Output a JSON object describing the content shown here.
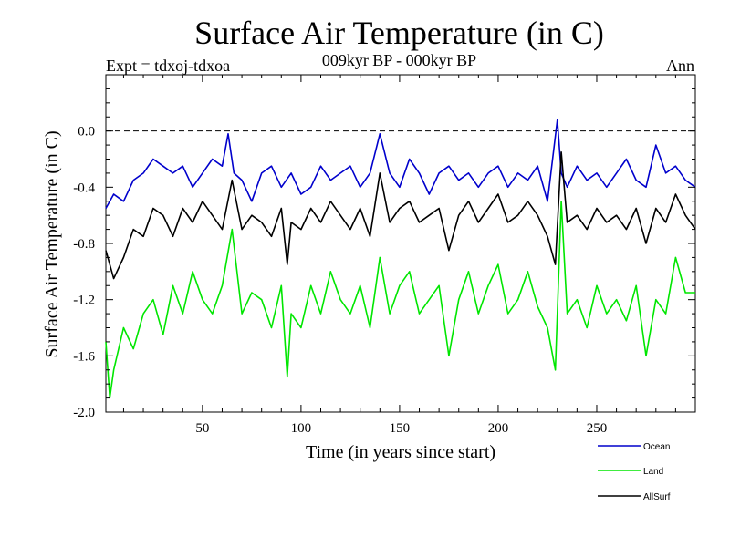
{
  "header": {
    "title": "Surface Air Temperature (in C)",
    "subtitle": "009kyr BP - 000kyr BP",
    "expt": "Expt = tdxoj-tdxoa",
    "season": "Ann"
  },
  "chart_data": {
    "type": "line",
    "title": "Surface Air Temperature (in C)",
    "subtitle": "009kyr BP - 000kyr BP",
    "xlabel": "Time (in years since start)",
    "ylabel": "Surface Air Temperature (in C)",
    "xlim": [
      1,
      300
    ],
    "ylim": [
      -2.0,
      0.4
    ],
    "xticks": [
      50,
      100,
      150,
      200,
      250
    ],
    "yticks": [
      -2.0,
      -1.6,
      -1.2,
      -0.8,
      -0.4,
      0.0
    ],
    "ytick_labels": [
      "-2.0",
      "-1.6",
      "-1.2",
      "-0.8",
      "-0.4",
      "0.0"
    ],
    "zero_line": "dashed",
    "grid": false,
    "legend_position": "bottom-right, below plot",
    "series": [
      {
        "name": "Ocean",
        "color": "#0000cc",
        "x": [
          1,
          5,
          10,
          15,
          20,
          25,
          30,
          35,
          40,
          45,
          50,
          55,
          60,
          63,
          66,
          70,
          75,
          80,
          85,
          90,
          95,
          100,
          105,
          110,
          115,
          120,
          125,
          130,
          135,
          140,
          145,
          150,
          155,
          160,
          165,
          170,
          175,
          180,
          185,
          190,
          195,
          200,
          205,
          210,
          215,
          220,
          225,
          230,
          232,
          235,
          240,
          245,
          250,
          255,
          260,
          265,
          270,
          275,
          280,
          285,
          290,
          295,
          300
        ],
        "values": [
          -0.55,
          -0.45,
          -0.5,
          -0.35,
          -0.3,
          -0.2,
          -0.25,
          -0.3,
          -0.25,
          -0.4,
          -0.3,
          -0.2,
          -0.25,
          -0.02,
          -0.3,
          -0.35,
          -0.5,
          -0.3,
          -0.25,
          -0.4,
          -0.3,
          -0.45,
          -0.4,
          -0.25,
          -0.35,
          -0.3,
          -0.25,
          -0.4,
          -0.3,
          -0.02,
          -0.3,
          -0.4,
          -0.2,
          -0.3,
          -0.45,
          -0.3,
          -0.25,
          -0.35,
          -0.3,
          -0.4,
          -0.3,
          -0.25,
          -0.4,
          -0.3,
          -0.35,
          -0.25,
          -0.5,
          0.08,
          -0.3,
          -0.4,
          -0.25,
          -0.35,
          -0.3,
          -0.4,
          -0.3,
          -0.2,
          -0.35,
          -0.4,
          -0.1,
          -0.3,
          -0.25,
          -0.35,
          -0.4
        ]
      },
      {
        "name": "Land",
        "color": "#00e600",
        "x": [
          1,
          3,
          5,
          10,
          15,
          20,
          25,
          30,
          35,
          40,
          45,
          50,
          55,
          60,
          65,
          70,
          75,
          80,
          85,
          90,
          93,
          95,
          100,
          105,
          110,
          115,
          120,
          125,
          130,
          135,
          140,
          145,
          150,
          155,
          160,
          165,
          170,
          175,
          180,
          185,
          190,
          195,
          200,
          205,
          210,
          215,
          220,
          225,
          229,
          232,
          235,
          240,
          245,
          250,
          255,
          260,
          265,
          270,
          275,
          280,
          285,
          290,
          295,
          300
        ],
        "values": [
          -1.5,
          -1.9,
          -1.7,
          -1.4,
          -1.55,
          -1.3,
          -1.2,
          -1.45,
          -1.1,
          -1.3,
          -1.0,
          -1.2,
          -1.3,
          -1.1,
          -0.7,
          -1.3,
          -1.15,
          -1.2,
          -1.4,
          -1.1,
          -1.75,
          -1.3,
          -1.4,
          -1.1,
          -1.3,
          -1.0,
          -1.2,
          -1.3,
          -1.1,
          -1.4,
          -0.9,
          -1.3,
          -1.1,
          -1.0,
          -1.3,
          -1.2,
          -1.1,
          -1.6,
          -1.2,
          -1.0,
          -1.3,
          -1.1,
          -0.95,
          -1.3,
          -1.2,
          -1.0,
          -1.25,
          -1.4,
          -1.7,
          -0.5,
          -1.3,
          -1.2,
          -1.4,
          -1.1,
          -1.3,
          -1.2,
          -1.35,
          -1.1,
          -1.6,
          -1.2,
          -1.3,
          -0.9,
          -1.15,
          -1.15
        ]
      },
      {
        "name": "AllSurf",
        "color": "#000000",
        "x": [
          1,
          5,
          10,
          15,
          20,
          25,
          30,
          35,
          40,
          45,
          50,
          55,
          60,
          65,
          70,
          75,
          80,
          85,
          90,
          93,
          95,
          100,
          105,
          110,
          115,
          120,
          125,
          130,
          135,
          140,
          145,
          150,
          155,
          160,
          165,
          170,
          175,
          180,
          185,
          190,
          195,
          200,
          205,
          210,
          215,
          220,
          225,
          229,
          232,
          235,
          240,
          245,
          250,
          255,
          260,
          265,
          270,
          275,
          280,
          285,
          290,
          295,
          300
        ],
        "values": [
          -0.85,
          -1.05,
          -0.9,
          -0.7,
          -0.75,
          -0.55,
          -0.6,
          -0.75,
          -0.55,
          -0.65,
          -0.5,
          -0.6,
          -0.7,
          -0.35,
          -0.7,
          -0.6,
          -0.65,
          -0.75,
          -0.55,
          -0.95,
          -0.65,
          -0.7,
          -0.55,
          -0.65,
          -0.5,
          -0.6,
          -0.7,
          -0.55,
          -0.75,
          -0.3,
          -0.65,
          -0.55,
          -0.5,
          -0.65,
          -0.6,
          -0.55,
          -0.85,
          -0.6,
          -0.5,
          -0.65,
          -0.55,
          -0.45,
          -0.65,
          -0.6,
          -0.5,
          -0.6,
          -0.75,
          -0.95,
          -0.15,
          -0.65,
          -0.6,
          -0.7,
          -0.55,
          -0.65,
          -0.6,
          -0.7,
          -0.55,
          -0.8,
          -0.55,
          -0.65,
          -0.45,
          -0.6,
          -0.7
        ]
      }
    ]
  }
}
